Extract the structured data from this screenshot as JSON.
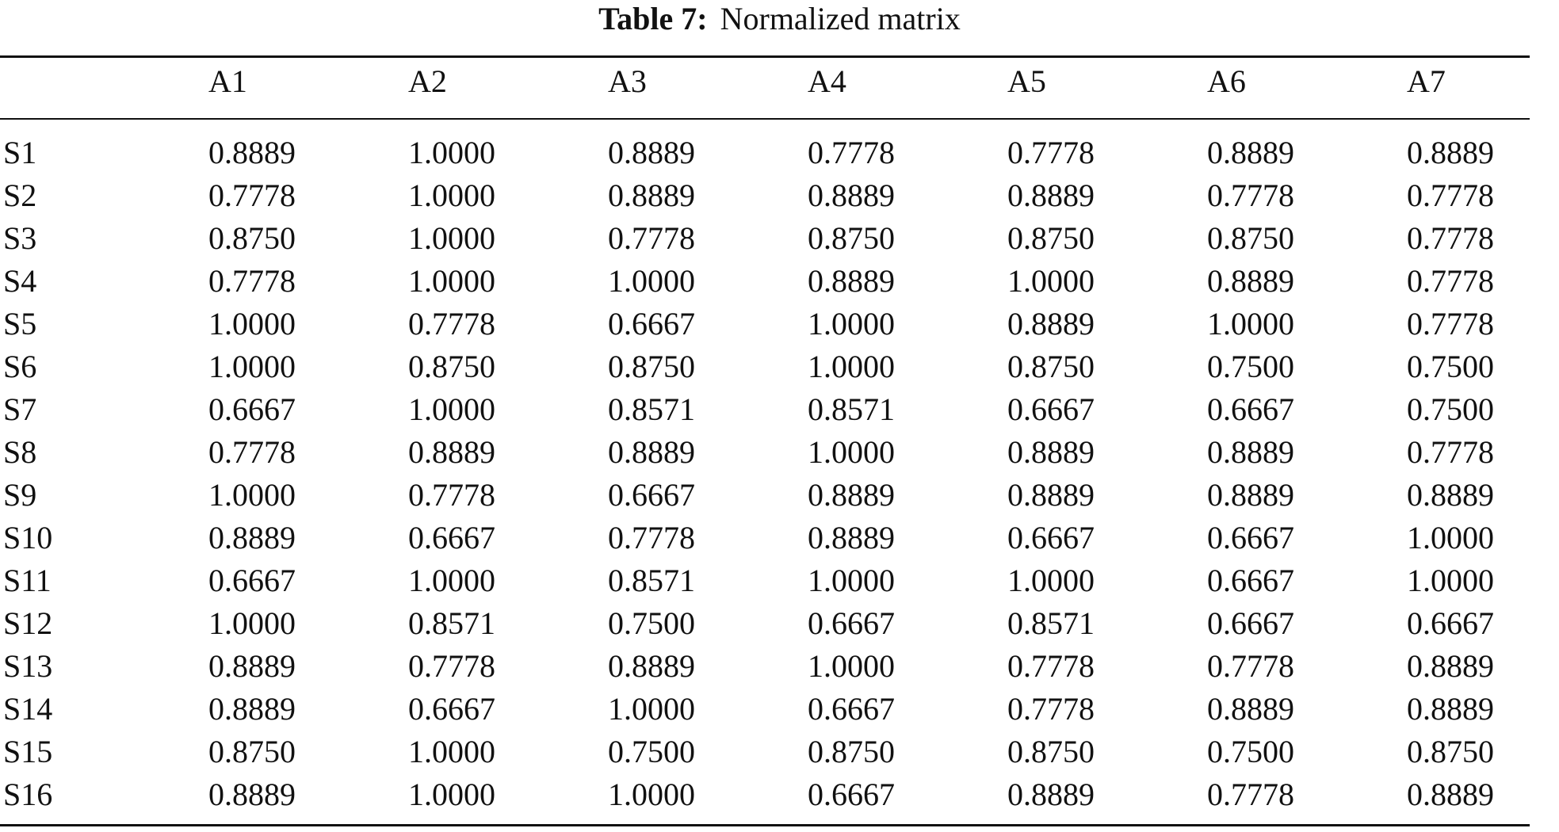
{
  "caption": {
    "label": "Table 7:",
    "title": "Normalized matrix"
  },
  "table": {
    "columns": [
      "",
      "A1",
      "A2",
      "A3",
      "A4",
      "A5",
      "A6",
      "A7"
    ],
    "rows": [
      [
        "S1",
        "0.8889",
        "1.0000",
        "0.8889",
        "0.7778",
        "0.7778",
        "0.8889",
        "0.8889"
      ],
      [
        "S2",
        "0.7778",
        "1.0000",
        "0.8889",
        "0.8889",
        "0.8889",
        "0.7778",
        "0.7778"
      ],
      [
        "S3",
        "0.8750",
        "1.0000",
        "0.7778",
        "0.8750",
        "0.8750",
        "0.8750",
        "0.7778"
      ],
      [
        "S4",
        "0.7778",
        "1.0000",
        "1.0000",
        "0.8889",
        "1.0000",
        "0.8889",
        "0.7778"
      ],
      [
        "S5",
        "1.0000",
        "0.7778",
        "0.6667",
        "1.0000",
        "0.8889",
        "1.0000",
        "0.7778"
      ],
      [
        "S6",
        "1.0000",
        "0.8750",
        "0.8750",
        "1.0000",
        "0.8750",
        "0.7500",
        "0.7500"
      ],
      [
        "S7",
        "0.6667",
        "1.0000",
        "0.8571",
        "0.8571",
        "0.6667",
        "0.6667",
        "0.7500"
      ],
      [
        "S8",
        "0.7778",
        "0.8889",
        "0.8889",
        "1.0000",
        "0.8889",
        "0.8889",
        "0.7778"
      ],
      [
        "S9",
        "1.0000",
        "0.7778",
        "0.6667",
        "0.8889",
        "0.8889",
        "0.8889",
        "0.8889"
      ],
      [
        "S10",
        "0.8889",
        "0.6667",
        "0.7778",
        "0.8889",
        "0.6667",
        "0.6667",
        "1.0000"
      ],
      [
        "S11",
        "0.6667",
        "1.0000",
        "0.8571",
        "1.0000",
        "1.0000",
        "0.6667",
        "1.0000"
      ],
      [
        "S12",
        "1.0000",
        "0.8571",
        "0.7500",
        "0.6667",
        "0.8571",
        "0.6667",
        "0.6667"
      ],
      [
        "S13",
        "0.8889",
        "0.7778",
        "0.8889",
        "1.0000",
        "0.7778",
        "0.7778",
        "0.8889"
      ],
      [
        "S14",
        "0.8889",
        "0.6667",
        "1.0000",
        "0.6667",
        "0.7778",
        "0.8889",
        "0.8889"
      ],
      [
        "S15",
        "0.8750",
        "1.0000",
        "0.7500",
        "0.8750",
        "0.8750",
        "0.7500",
        "0.8750"
      ],
      [
        "S16",
        "0.8889",
        "1.0000",
        "1.0000",
        "0.6667",
        "0.8889",
        "0.7778",
        "0.8889"
      ]
    ]
  }
}
